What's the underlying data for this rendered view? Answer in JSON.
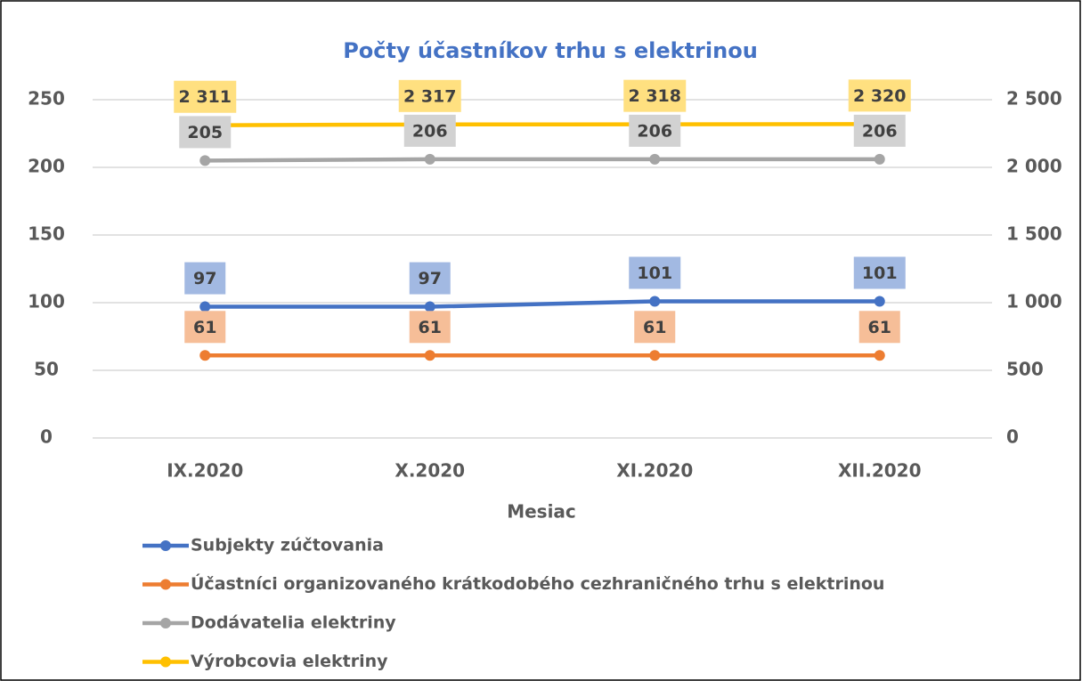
{
  "chart_data": {
    "type": "line",
    "title": "Počty účastníkov trhu s elektrinou",
    "x_label": "Mesiac",
    "categories": [
      "IX.2020",
      "X.2020",
      "XI.2020",
      "XII.2020"
    ],
    "series": [
      {
        "name": "Subjekty zúčtovania",
        "color": "#4472c4",
        "values": [
          97,
          97,
          101,
          101
        ]
      },
      {
        "name": "Účastníci organizovaného krátkodobého cezhraničného trhu s elektrinou",
        "color": "#ed7d31",
        "values": [
          61,
          61,
          61,
          61
        ]
      },
      {
        "name": "Dodávatelia elektriny",
        "color": "#a5a5a5",
        "values": [
          205,
          206,
          206,
          206
        ]
      },
      {
        "name": "Výrobcovia elektriny",
        "color": "#ffc000",
        "axis": "y2",
        "values": [
          2311,
          2317,
          2318,
          2320
        ],
        "value_labels": [
          "2 311",
          "2 317",
          "2 318",
          "2 320"
        ]
      }
    ],
    "ylim": [
      0,
      250
    ],
    "yticks": [
      0,
      50,
      100,
      150,
      200,
      250
    ],
    "y2lim": [
      0,
      2500
    ],
    "y2ticks": [
      0,
      500,
      {
        "value": 1000,
        "label": "1 000"
      },
      {
        "value": 1500,
        "label": "1 500"
      },
      {
        "value": 2000,
        "label": "2 000"
      },
      {
        "value": 2500,
        "label": "2 500"
      }
    ],
    "grid": true,
    "legend": "bottom"
  }
}
